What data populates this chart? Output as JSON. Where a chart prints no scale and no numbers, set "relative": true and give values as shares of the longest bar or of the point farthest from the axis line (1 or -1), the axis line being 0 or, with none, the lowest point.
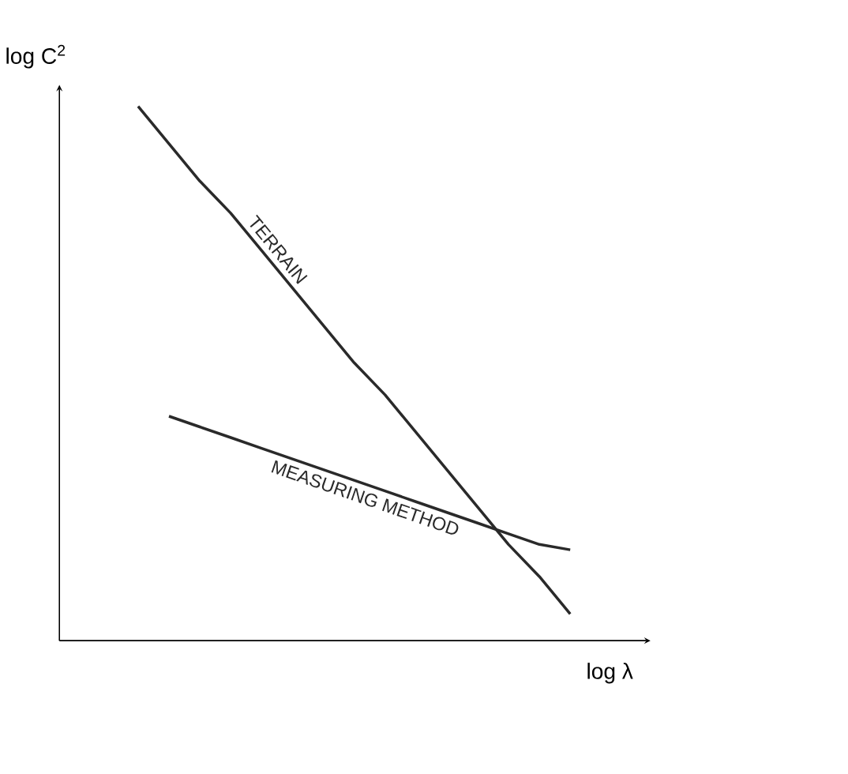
{
  "chart_data": {
    "type": "line",
    "relative": true,
    "xlabel": "log λ",
    "ylabel": "log C$^{2}$",
    "categories": [
      null,
      null,
      null,
      null,
      null,
      null,
      null,
      null,
      null,
      null,
      null,
      null,
      null,
      null,
      null
    ],
    "series": [
      {
        "name": "TERRAIN",
        "color": "#2a2a2a",
        "values": [
          1,
          0.93,
          0.86,
          0.8,
          0.73,
          0.66,
          0.59,
          0.52,
          0.46,
          0.39,
          0.32,
          0.25,
          0.18,
          0.12,
          0.05
        ]
      },
      {
        "name": "MEASURING METHOD",
        "color": "#2a2a2a",
        "values": [
          null,
          0.42,
          0.4,
          0.38,
          0.36,
          0.34,
          0.32,
          0.3,
          0.28,
          0.26,
          0.24,
          0.22,
          0.2,
          0.18,
          0.17
        ]
      }
    ],
    "legend": false,
    "marker": "none",
    "line_style": "solid"
  }
}
